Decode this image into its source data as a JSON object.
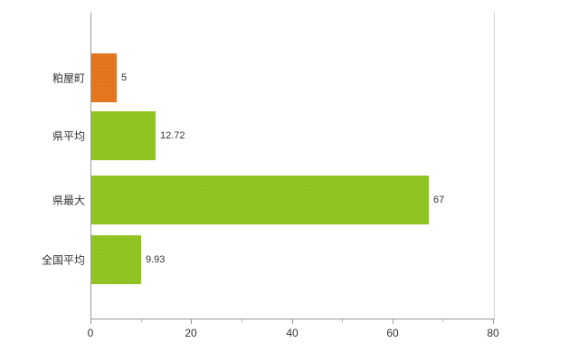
{
  "chart_data": {
    "type": "bar",
    "orientation": "horizontal",
    "title": "",
    "xlabel": "",
    "ylabel": "",
    "categories": [
      "粕屋町",
      "県平均",
      "県最大",
      "全国平均"
    ],
    "values": [
      5,
      12.72,
      67,
      9.93
    ],
    "value_labels": [
      "5",
      "12.72",
      "67",
      "9.93"
    ],
    "bar_colors": [
      "#e2741b",
      "#8fc31f",
      "#8fc31f",
      "#8fc31f"
    ],
    "xlim": [
      0,
      80
    ],
    "x_ticks": [
      0,
      20,
      40,
      60,
      80
    ],
    "x_tick_labels": [
      "0",
      "20",
      "40",
      "60",
      "80"
    ],
    "minor_tick_step": 10,
    "grid": false,
    "legend": "none"
  },
  "colors": {
    "axis": "#9a9a9a",
    "plot_right_border": "#d6d6d6",
    "text": "#333333",
    "background": "#ffffff"
  }
}
